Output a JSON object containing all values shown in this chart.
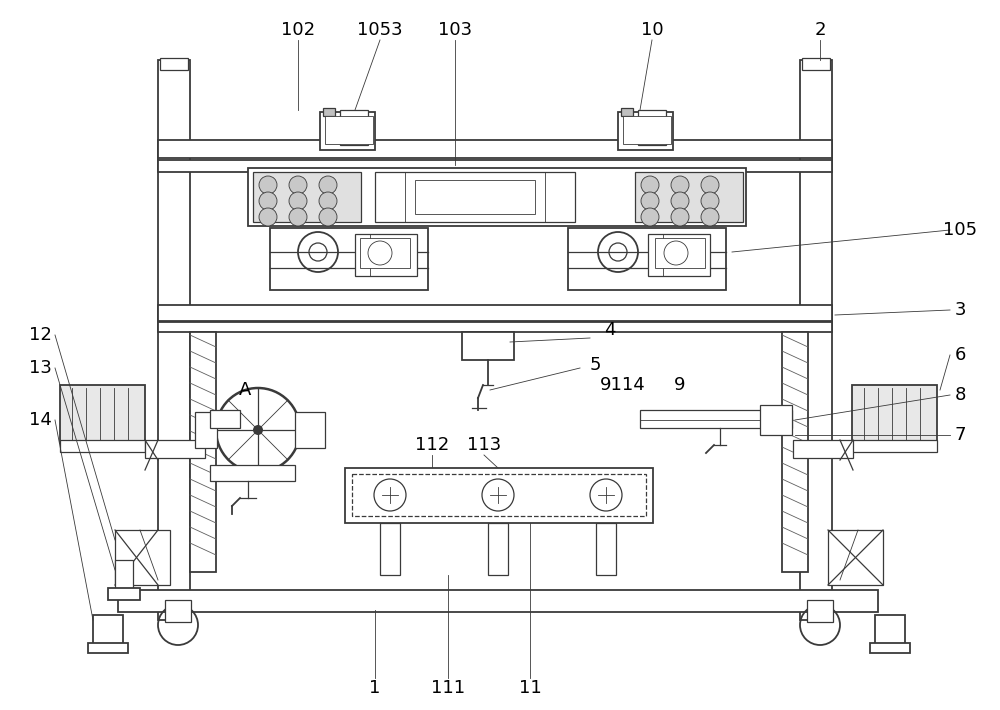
{
  "bg_color": "#ffffff",
  "lc": "#3a3a3a",
  "fig_w": 10.0,
  "fig_h": 7.1,
  "dpi": 100
}
